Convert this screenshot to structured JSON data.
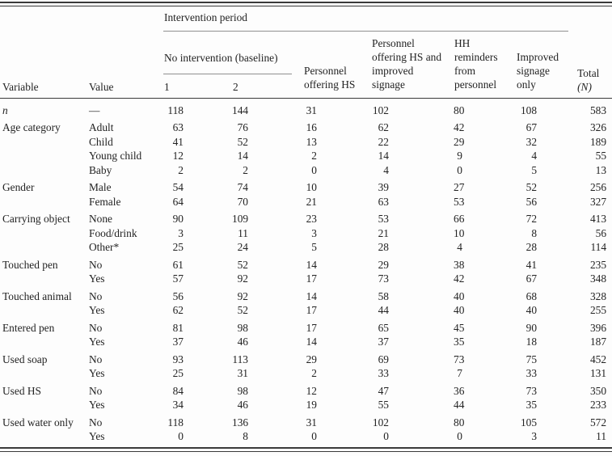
{
  "colors": {
    "background": "#fdfdfd",
    "ink": "#232323",
    "heavy_rule": "#3a3a3a",
    "light_rule": "#8f8f8f"
  },
  "table": {
    "headers": {
      "variable": "Variable",
      "value": "Value",
      "intervention_period": "Intervention period",
      "no_intervention": "No intervention (baseline)",
      "period1": "1",
      "period2": "2",
      "personnel_hs": "Personnel offering HS",
      "personnel_hs_signage": "Personnel offering HS and improved signage",
      "hh_reminders": "HH reminders from personnel",
      "improved_signage": "Improved signage only",
      "total_line1": "Total",
      "total_line2": "(N)"
    },
    "rows": [
      {
        "variable": "n",
        "variable_italic": true,
        "value": "—",
        "group_start": false,
        "cells": [
          118,
          144,
          31,
          102,
          80,
          108,
          583
        ]
      },
      {
        "variable": "Age category",
        "variable_italic": false,
        "value": "Adult",
        "group_start": true,
        "cells": [
          63,
          76,
          16,
          62,
          42,
          67,
          326
        ]
      },
      {
        "variable": "",
        "variable_italic": false,
        "value": "Child",
        "group_start": false,
        "cells": [
          41,
          52,
          13,
          22,
          29,
          32,
          189
        ]
      },
      {
        "variable": "",
        "variable_italic": false,
        "value": "Young child",
        "group_start": false,
        "cells": [
          12,
          14,
          2,
          14,
          9,
          4,
          55
        ]
      },
      {
        "variable": "",
        "variable_italic": false,
        "value": "Baby",
        "group_start": false,
        "cells": [
          2,
          2,
          0,
          4,
          0,
          5,
          13
        ]
      },
      {
        "variable": "Gender",
        "variable_italic": false,
        "value": "Male",
        "group_start": true,
        "cells": [
          54,
          74,
          10,
          39,
          27,
          52,
          256
        ]
      },
      {
        "variable": "",
        "variable_italic": false,
        "value": "Female",
        "group_start": false,
        "cells": [
          64,
          70,
          21,
          63,
          53,
          56,
          327
        ]
      },
      {
        "variable": "Carrying object",
        "variable_italic": false,
        "value": "None",
        "group_start": true,
        "cells": [
          90,
          109,
          23,
          53,
          66,
          72,
          413
        ]
      },
      {
        "variable": "",
        "variable_italic": false,
        "value": "Food/drink",
        "group_start": false,
        "cells": [
          3,
          11,
          3,
          21,
          10,
          8,
          56
        ]
      },
      {
        "variable": "",
        "variable_italic": false,
        "value": "Other*",
        "group_start": false,
        "cells": [
          25,
          24,
          5,
          28,
          4,
          28,
          114
        ]
      },
      {
        "variable": "Touched pen",
        "variable_italic": false,
        "value": "No",
        "group_start": true,
        "cells": [
          61,
          52,
          14,
          29,
          38,
          41,
          235
        ]
      },
      {
        "variable": "",
        "variable_italic": false,
        "value": "Yes",
        "group_start": false,
        "cells": [
          57,
          92,
          17,
          73,
          42,
          67,
          348
        ]
      },
      {
        "variable": "Touched animal",
        "variable_italic": false,
        "value": "No",
        "group_start": true,
        "cells": [
          56,
          92,
          14,
          58,
          40,
          68,
          328
        ]
      },
      {
        "variable": "",
        "variable_italic": false,
        "value": "Yes",
        "group_start": false,
        "cells": [
          62,
          52,
          17,
          44,
          40,
          40,
          255
        ]
      },
      {
        "variable": "Entered pen",
        "variable_italic": false,
        "value": "No",
        "group_start": true,
        "cells": [
          81,
          98,
          17,
          65,
          45,
          90,
          396
        ]
      },
      {
        "variable": "",
        "variable_italic": false,
        "value": "Yes",
        "group_start": false,
        "cells": [
          37,
          46,
          14,
          37,
          35,
          18,
          187
        ]
      },
      {
        "variable": "Used soap",
        "variable_italic": false,
        "value": "No",
        "group_start": true,
        "cells": [
          93,
          113,
          29,
          69,
          73,
          75,
          452
        ]
      },
      {
        "variable": "",
        "variable_italic": false,
        "value": "Yes",
        "group_start": false,
        "cells": [
          25,
          31,
          2,
          33,
          7,
          33,
          131
        ]
      },
      {
        "variable": "Used HS",
        "variable_italic": false,
        "value": "No",
        "group_start": true,
        "cells": [
          84,
          98,
          12,
          47,
          36,
          73,
          350
        ]
      },
      {
        "variable": "",
        "variable_italic": false,
        "value": "Yes",
        "group_start": false,
        "cells": [
          34,
          46,
          19,
          55,
          44,
          35,
          233
        ]
      },
      {
        "variable": "Used water only",
        "variable_italic": false,
        "value": "No",
        "group_start": true,
        "cells": [
          118,
          136,
          31,
          102,
          80,
          105,
          572
        ]
      },
      {
        "variable": "",
        "variable_italic": false,
        "value": "Yes",
        "group_start": false,
        "cells": [
          0,
          8,
          0,
          0,
          0,
          3,
          11
        ]
      }
    ]
  }
}
